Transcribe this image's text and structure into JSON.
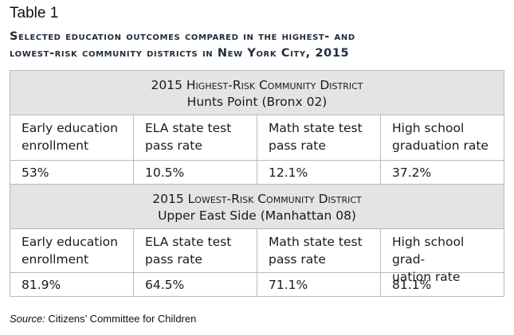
{
  "table_label": "Table 1",
  "caption": {
    "line1": "Selected education outcomes compared in the highest- and",
    "line2": "lowest-risk community districts in New York City, 2015"
  },
  "sections": [
    {
      "title": "2015 Highest-Risk Community District",
      "subtitle": "Hunts Point (Bronx 02)",
      "columns": [
        {
          "label_line1": "Early education",
          "label_line2": "enrollment",
          "value": "53%"
        },
        {
          "label_line1": "ELA state test",
          "label_line2": "pass rate",
          "value": "10.5%"
        },
        {
          "label_line1": "Math state test",
          "label_line2": "pass rate",
          "value": "12.1%"
        },
        {
          "label_line1": "High school",
          "label_line2": "graduation rate",
          "value": "37.2%"
        }
      ]
    },
    {
      "title": "2015 Lowest-Risk Community District",
      "subtitle": "Upper East Side (Manhattan 08)",
      "columns": [
        {
          "label_line1": "Early education",
          "label_line2": "enrollment",
          "value": "81.9%"
        },
        {
          "label_line1": "ELA state test",
          "label_line2": "pass rate",
          "value": "64.5%"
        },
        {
          "label_line1": "Math state test",
          "label_line2": "pass rate",
          "value": "71.1%"
        },
        {
          "label_line1": "High school grad-",
          "label_line2": "uation rate",
          "value": "81.1%"
        }
      ]
    }
  ],
  "source": {
    "lead": "Source:",
    "text": " Citizens’ Committee for Children"
  }
}
